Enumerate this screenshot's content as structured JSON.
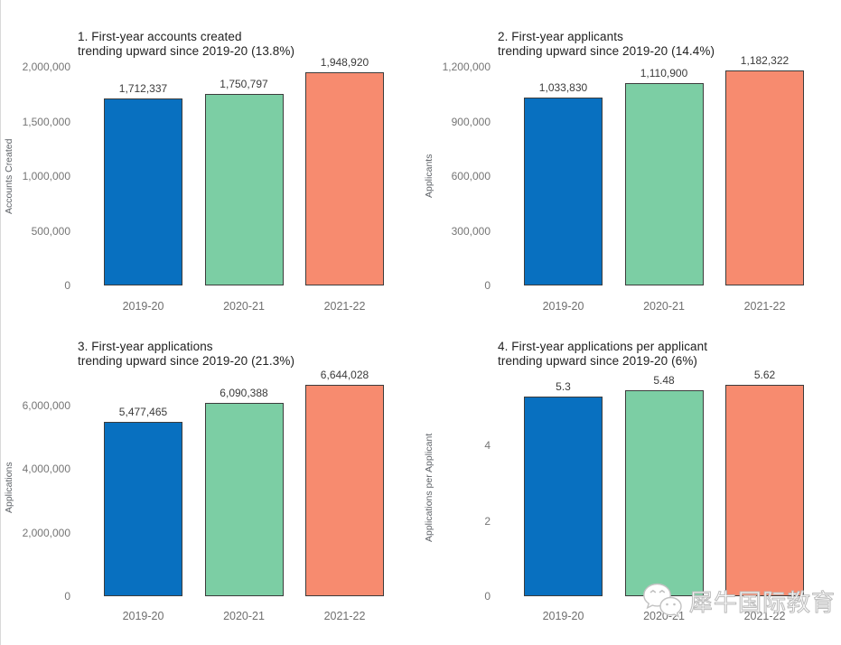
{
  "palette": {
    "bar_colors": [
      "#0870c0",
      "#7ccea4",
      "#f78b6f"
    ],
    "bar_border": "#3c3c3c",
    "title_color": "#212121",
    "tick_color": "#757575",
    "value_label_color": "#3a3a3a",
    "axis_label_color": "#5f6368",
    "background": "#ffffff"
  },
  "watermark": {
    "brand_text": "犀牛国际教育",
    "logo": "wechat-icon"
  },
  "chart_data": [
    {
      "type": "bar",
      "title_lines": [
        "1. First-year accounts created",
        "trending upward since 2019-20 (13.8%)"
      ],
      "title": "1. First-year accounts created trending upward since 2019-20 (13.8%)",
      "ylabel": "Accounts Created",
      "xlabel": "",
      "categories": [
        "2019-20",
        "2020-21",
        "2021-22"
      ],
      "values": [
        1712337,
        1750797,
        1948920
      ],
      "value_labels": [
        "1,712,337",
        "1,750,797",
        "1,948,920"
      ],
      "yticks": [
        0,
        500000,
        1000000,
        1500000,
        2000000
      ],
      "ytick_labels": [
        "0",
        "500,000",
        "1,000,000",
        "1,500,000",
        "2,000,000"
      ],
      "ylim": [
        0,
        2000000
      ],
      "grid": false,
      "legend": null
    },
    {
      "type": "bar",
      "title_lines": [
        "2. First-year applicants",
        "trending upward since 2019-20 (14.4%)"
      ],
      "title": "2. First-year applicants trending upward since 2019-20 (14.4%)",
      "ylabel": "Applicants",
      "xlabel": "",
      "categories": [
        "2019-20",
        "2020-21",
        "2021-22"
      ],
      "values": [
        1033830,
        1110900,
        1182322
      ],
      "value_labels": [
        "1,033,830",
        "1,110,900",
        "1,182,322"
      ],
      "yticks": [
        0,
        300000,
        600000,
        900000,
        1200000
      ],
      "ytick_labels": [
        "0",
        "300,000",
        "600,000",
        "900,000",
        "1,200,000"
      ],
      "ylim": [
        0,
        1200000
      ],
      "grid": false,
      "legend": null
    },
    {
      "type": "bar",
      "title_lines": [
        "3. First-year applications",
        "trending upward since 2019-20 (21.3%)"
      ],
      "title": "3. First-year applications trending upward since 2019-20 (21.3%)",
      "ylabel": "Applications",
      "xlabel": "",
      "categories": [
        "2019-20",
        "2020-21",
        "2021-22"
      ],
      "values": [
        5477465,
        6090388,
        6644028
      ],
      "value_labels": [
        "5,477,465",
        "6,090,388",
        "6,644,028"
      ],
      "yticks": [
        0,
        2000000,
        4000000,
        6000000
      ],
      "ytick_labels": [
        "0",
        "2,000,000",
        "4,000,000",
        "6,000,000"
      ],
      "ylim": [
        0,
        6850000
      ],
      "grid": false,
      "legend": null
    },
    {
      "type": "bar",
      "title_lines": [
        "4. First-year applications per applicant",
        "trending upward since 2019-20 (6%)"
      ],
      "title": "4. First-year applications per applicant trending upward since 2019-20 (6%)",
      "ylabel": "Applications per Applicant",
      "xlabel": "",
      "categories": [
        "2019-20",
        "2020-21",
        "2021-22"
      ],
      "values": [
        5.3,
        5.48,
        5.62
      ],
      "value_labels": [
        "5.3",
        "5.48",
        "5.62"
      ],
      "yticks": [
        0,
        2,
        4
      ],
      "ytick_labels": [
        "0",
        "2",
        "4"
      ],
      "ylim": [
        0,
        5.78
      ],
      "grid": false,
      "legend": null
    }
  ]
}
